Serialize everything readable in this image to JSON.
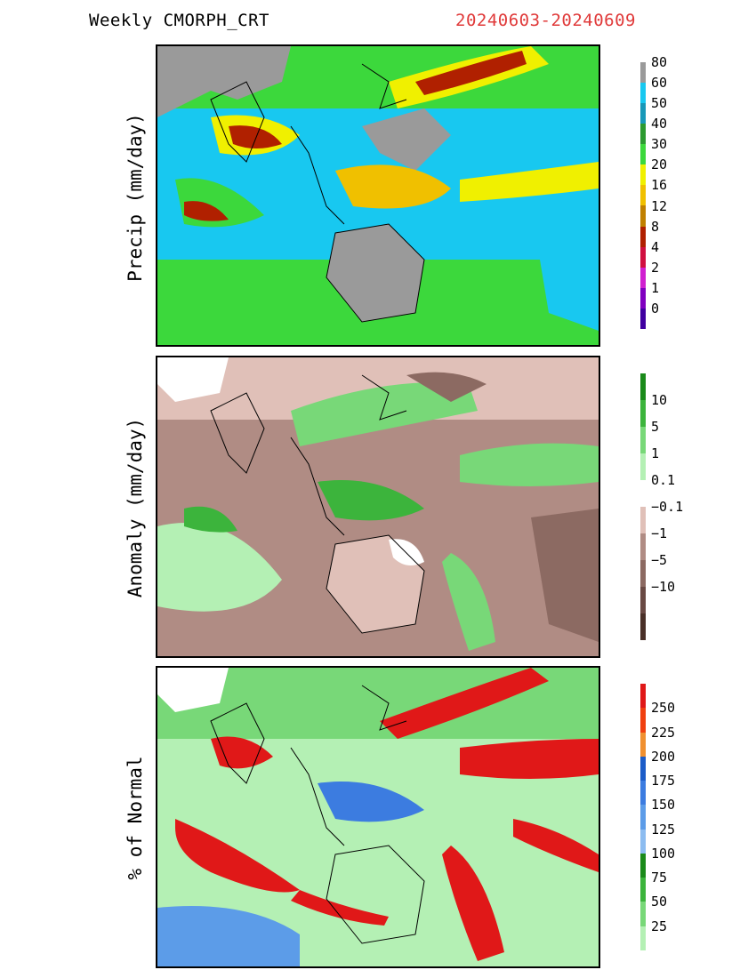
{
  "header": {
    "title": "Weekly CMORPH_CRT",
    "dates": "20240603-20240609"
  },
  "panels": [
    {
      "ylabel": "Precip (mm/day)",
      "colorbar": {
        "colors": [
          "#9a9a9a",
          "#18c8f0",
          "#1898b8",
          "#2c9a30",
          "#3cd83c",
          "#f0f000",
          "#f0c000",
          "#c08000",
          "#b02000",
          "#d01040",
          "#d020d0",
          "#8000c0",
          "#4000a0"
        ],
        "ticks": [
          "0",
          "1",
          "2",
          "4",
          "8",
          "12",
          "16",
          "20",
          "30",
          "40",
          "50",
          "60",
          "80"
        ]
      }
    },
    {
      "ylabel": "Anomaly (mm/day)",
      "colorbar": {
        "colors": [
          "#1a8a1a",
          "#3cb43c",
          "#78d878",
          "#b4f0b4",
          "#ffffff",
          "#e0c0b8",
          "#b08c84",
          "#8c6a62",
          "#6a4a44",
          "#4a3028"
        ],
        "ticks": [
          "10",
          "5",
          "1",
          "0.1",
          "−0.1",
          "−1",
          "−5",
          "−10"
        ]
      }
    },
    {
      "ylabel": "% of Normal",
      "colorbar": {
        "colors": [
          "#e01818",
          "#f04010",
          "#f09030",
          "#1c5cc8",
          "#3c7ce0",
          "#5c9ce8",
          "#8cbcf0",
          "#1a8a1a",
          "#3cb43c",
          "#78d878",
          "#b4f0b4"
        ],
        "ticks": [
          "250",
          "225",
          "200",
          "175",
          "150",
          "125",
          "100",
          "75",
          "50",
          "25"
        ]
      }
    }
  ]
}
